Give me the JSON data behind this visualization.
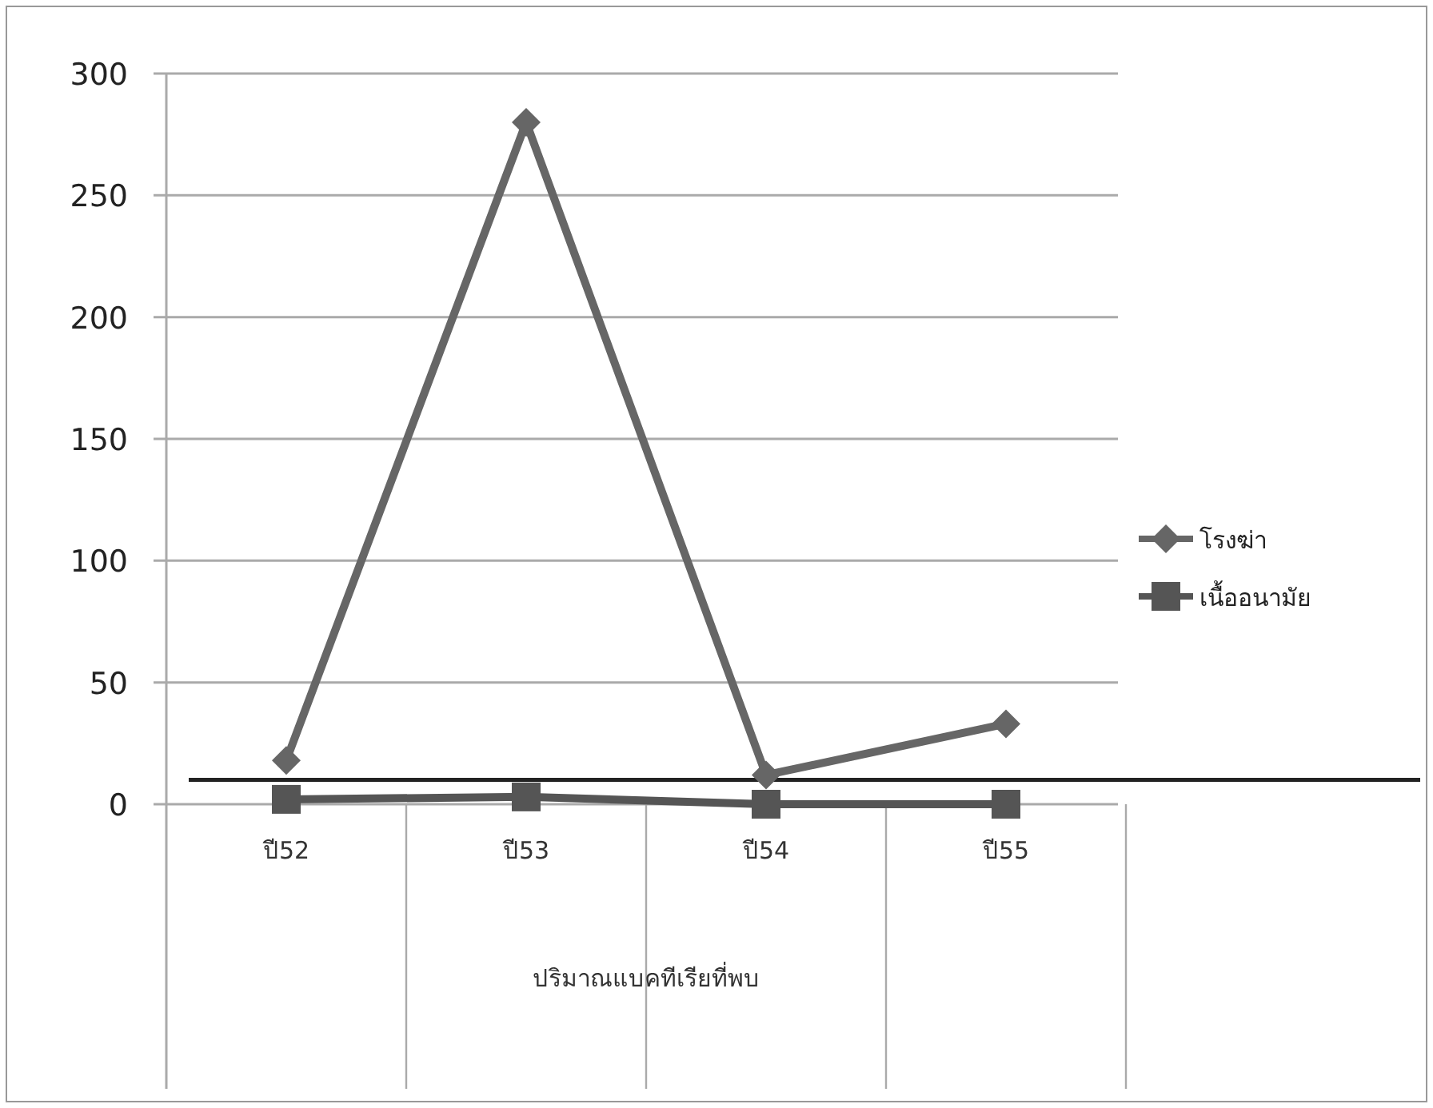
{
  "chart_data": {
    "type": "line",
    "categories": [
      "ปี52",
      "ปี53",
      "ปี54",
      "ปี55"
    ],
    "xlabel": "ปริมาณแบคทีเรียที่พบ",
    "series": [
      {
        "name": "โรงฆ่า",
        "color": "#666666",
        "marker": "diamond",
        "values": [
          18,
          280,
          12,
          33
        ]
      },
      {
        "name": "เนื้ออนามัย",
        "color": "#555555",
        "marker": "square",
        "values": [
          2,
          3,
          0,
          0
        ]
      }
    ],
    "ylim": [
      0,
      300
    ],
    "yticks": [
      0,
      50,
      100,
      150,
      200,
      250,
      300
    ],
    "grid": "y",
    "legend": "right",
    "ref_lines": [
      {
        "axis": "y",
        "value": 10,
        "color": "#222222"
      }
    ]
  }
}
